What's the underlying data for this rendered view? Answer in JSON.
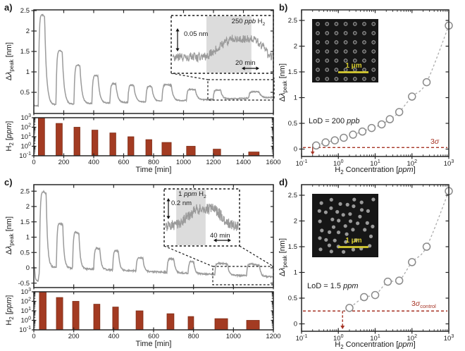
{
  "text": {
    "panel_a": "a)",
    "panel_b": "b)",
    "panel_c": "c)",
    "panel_d": "d)",
    "ylabel": {
      "d": "Δ",
      "lambda": "λ",
      "sub": "peak",
      "units": " [nm]"
    },
    "h2": {
      "h": "H",
      "sub": "2"
    },
    "bars_units": {
      "open": " [",
      "unit": "ppm",
      "close": "]"
    },
    "time_label": "Time [min]",
    "conc": {
      "mid": " Concentration [",
      "unit": "ppm",
      "close": "]"
    },
    "lod_b": {
      "pre": "LoD = 200 ",
      "unit": "ppb"
    },
    "lod_d": {
      "pre": "LoD = 1.5 ",
      "unit": "ppm"
    },
    "sigma_b": {
      "num": "3",
      "sym": "σ"
    },
    "sigma_d": {
      "num": "3",
      "sym": "σ",
      "sub": "control"
    },
    "inset_a": {
      "pre": "250 ",
      "unit": "ppb",
      "post": " H",
      "sub": "2",
      "vscale": "0.05 nm",
      "hscale": "20 min"
    },
    "inset_c": {
      "pre": "1 ",
      "unit": "ppm",
      "post": " H",
      "sub": "2",
      "vscale": "0.2 nm",
      "hscale": "40 min"
    },
    "scalebar": "1 μm"
  },
  "colors": {
    "trace": "#9b9b9b",
    "bar": "#a33b22",
    "bar_edge": "#7e2c16",
    "axis": "#262626",
    "fit": "#ababab",
    "marker": "#8a8a8a",
    "threshold": "#a63324",
    "sem_bg": "#161616",
    "sem_dot": "#9a9a9a",
    "scalebar": "#d6cb2f",
    "inset_shade": "#dcdcdc",
    "tick_text": "#1a1a1a"
  },
  "chart_data": [
    {
      "id": "a_timeseries",
      "type": "line",
      "xlabel": "Time [min]",
      "ylabel": "Δλpeak [nm]",
      "xlim": [
        0,
        1600
      ],
      "xticks": [
        0,
        200,
        400,
        600,
        800,
        1000,
        1200,
        1400,
        1600
      ],
      "ylim": [
        0.02,
        2.52
      ],
      "yticks": [
        0.5,
        1,
        1.5,
        2,
        2.5
      ],
      "baseline": {
        "start": 0.17,
        "slope": 0.00013
      },
      "rise_tau": 5,
      "decay_tau": 13,
      "noise": 0.013,
      "pulses": [
        [
          30,
          72,
          2.35
        ],
        [
          148,
          190,
          1.4
        ],
        [
          268,
          308,
          1.02
        ],
        [
          388,
          428,
          0.73
        ],
        [
          508,
          548,
          0.5
        ],
        [
          628,
          668,
          0.45
        ],
        [
          748,
          788,
          0.4
        ],
        [
          856,
          918,
          0.42
        ],
        [
          1020,
          1078,
          0.28
        ],
        [
          1198,
          1248,
          0.24
        ],
        [
          1435,
          1505,
          0.16
        ]
      ],
      "inset": {
        "label": "250 ppb H2",
        "vscale": "0.05 nm",
        "hscale": "20 min"
      }
    },
    {
      "id": "a_bars",
      "type": "bar",
      "ylabel": "H2 [ppm]",
      "yscale": "log",
      "ylim": [
        0.1,
        1000
      ],
      "ytick_exponents": [
        -1,
        0,
        1,
        2,
        3
      ],
      "bars": [
        [
          30,
          72,
          1000
        ],
        [
          148,
          190,
          250
        ],
        [
          268,
          308,
          100
        ],
        [
          388,
          428,
          50
        ],
        [
          508,
          548,
          25
        ],
        [
          628,
          668,
          10
        ],
        [
          748,
          788,
          5
        ],
        [
          856,
          918,
          2.5
        ],
        [
          1020,
          1078,
          1
        ],
        [
          1198,
          1248,
          0.5
        ],
        [
          1435,
          1505,
          0.25
        ]
      ]
    },
    {
      "id": "b_scatter",
      "type": "scatter",
      "xlabel": "H2 Concentration [ppm]",
      "ylabel": "Δλpeak [nm]",
      "xscale": "log",
      "xlim": [
        0.1,
        1000
      ],
      "xtick_exponents": [
        -1,
        0,
        1,
        2,
        3
      ],
      "ylim": [
        -0.14,
        2.7
      ],
      "yticks": [
        0,
        0.5,
        1,
        1.5,
        2,
        2.5
      ],
      "x": [
        0.25,
        0.45,
        0.8,
        1.4,
        2.5,
        4.5,
        8,
        15,
        25,
        45,
        100,
        250,
        1000
      ],
      "y": [
        0.07,
        0.13,
        0.17,
        0.22,
        0.28,
        0.34,
        0.41,
        0.48,
        0.58,
        0.72,
        1.02,
        1.3,
        2.4
      ],
      "fit_extension": {
        "x": 0.2,
        "y": 0.05
      },
      "threshold": {
        "y": 0.03,
        "label": "3σ"
      },
      "lod": {
        "label": "LoD = 200 ppb",
        "value_ppb": 200,
        "arrow_x": 0.2,
        "arrow_style": "solid"
      },
      "inset": {
        "kind": "ordered-array",
        "rows": 7,
        "cols": 7,
        "scalebar": "1 μm"
      }
    },
    {
      "id": "c_timeseries",
      "type": "line",
      "xlabel": "Time [min]",
      "ylabel": "Δλpeak [nm]",
      "xlim": [
        0,
        1200
      ],
      "xticks": [
        0,
        200,
        400,
        600,
        800,
        1000,
        1200
      ],
      "ylim": [
        -0.64,
        2.72
      ],
      "yticks": [
        -0.5,
        0,
        0.5,
        1,
        1.5,
        2,
        2.5
      ],
      "baseline": {
        "start": 0.04,
        "slope": -0.00028
      },
      "rise_tau": 3.5,
      "decay_tau": 7,
      "noise": 0.022,
      "pulses": [
        [
          4,
          22,
          -0.5
        ],
        [
          28,
          62,
          2.6
        ],
        [
          113,
          145,
          1.52
        ],
        [
          194,
          226,
          1.24
        ],
        [
          300,
          331,
          0.72
        ],
        [
          395,
          424,
          0.67
        ],
        [
          512,
          547,
          0.46
        ],
        [
          667,
          702,
          0.47
        ],
        [
          773,
          801,
          0.41
        ],
        [
          907,
          971,
          0.38
        ],
        [
          1066,
          1130,
          0.4
        ]
      ],
      "inset": {
        "label": "1 ppm H2",
        "vscale": "0.2 nm",
        "hscale": "40 min"
      }
    },
    {
      "id": "c_bars",
      "type": "bar",
      "ylabel": "H2 [ppm]",
      "yscale": "log",
      "ylim": [
        0.1,
        1000
      ],
      "ytick_exponents": [
        -1,
        0,
        1,
        2,
        3
      ],
      "bars": [
        [
          28,
          62,
          1000
        ],
        [
          113,
          145,
          250
        ],
        [
          194,
          226,
          100
        ],
        [
          300,
          331,
          50
        ],
        [
          395,
          424,
          25
        ],
        [
          512,
          547,
          10
        ],
        [
          667,
          702,
          5
        ],
        [
          773,
          801,
          2.5
        ],
        [
          907,
          971,
          1.5
        ],
        [
          1066,
          1130,
          1
        ]
      ]
    },
    {
      "id": "d_scatter",
      "type": "scatter",
      "xlabel": "H2 Concentration [ppm]",
      "ylabel": "Δλpeak [nm]",
      "xscale": "log",
      "xlim": [
        0.1,
        1000
      ],
      "xtick_exponents": [
        -1,
        0,
        1,
        2,
        3
      ],
      "ylim": [
        -0.14,
        2.7
      ],
      "yticks": [
        0,
        0.5,
        1,
        1.5,
        2,
        2.5
      ],
      "x": [
        2,
        5,
        10,
        22,
        45,
        100,
        250,
        1000
      ],
      "y": [
        0.31,
        0.52,
        0.56,
        0.82,
        0.84,
        1.2,
        1.5,
        2.58
      ],
      "fit_extension": {
        "x": 1.3,
        "y": 0.25
      },
      "threshold": {
        "y": 0.25,
        "label": "3σcontrol"
      },
      "lod": {
        "label": "LoD = 1.5 ppm",
        "value_ppm": 1.5,
        "arrow_x": 1.3,
        "arrow_style": "dashed"
      },
      "inset": {
        "kind": "random-array",
        "count": 46,
        "scalebar": "1 μm"
      }
    }
  ]
}
